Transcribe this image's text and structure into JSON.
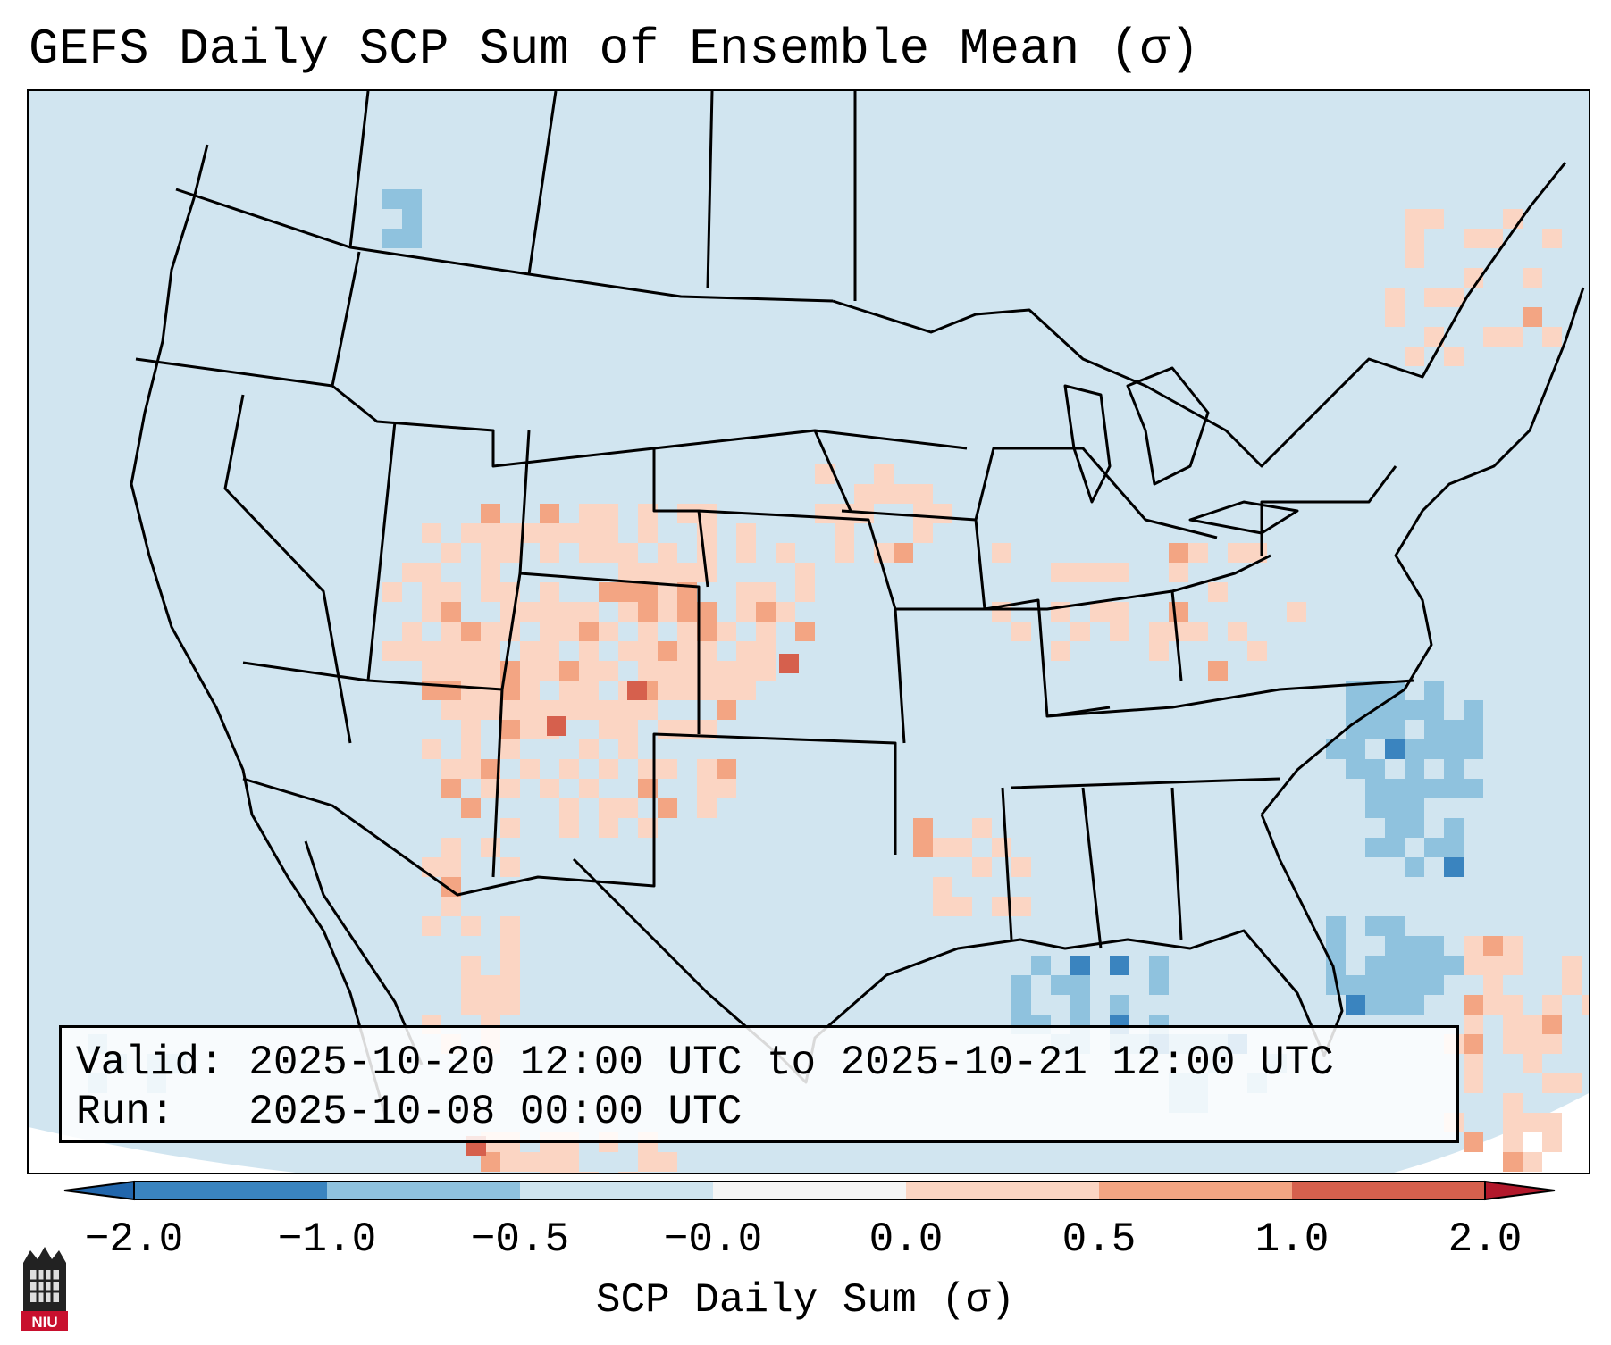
{
  "title": "GEFS Daily SCP Sum of Ensemble Mean (σ)",
  "info": {
    "valid_label": "Valid:",
    "valid_value": "2025-10-20 12:00 UTC to 2025-10-21 12:00 UTC",
    "run_label": "Run:",
    "run_value": "2025-10-08 00:00 UTC"
  },
  "colorbar": {
    "label": "SCP Daily Sum (σ)",
    "ticks": [
      "−2.0",
      "−1.0",
      "−0.5",
      "−0.0",
      "0.0",
      "0.5",
      "1.0",
      "2.0"
    ],
    "colors": [
      "#3a84bf",
      "#8fc2de",
      "#cfe4ef",
      "#f5f5f5",
      "#fbd5c3",
      "#f3a583",
      "#d6604d"
    ],
    "under_color": "#2166ac",
    "over_color": "#b2182b"
  },
  "map": {
    "background_color": "#d1e5f0",
    "outside_color": "#ffffff",
    "region": "Contiguous United States"
  },
  "logo": {
    "text": "NIU"
  }
}
